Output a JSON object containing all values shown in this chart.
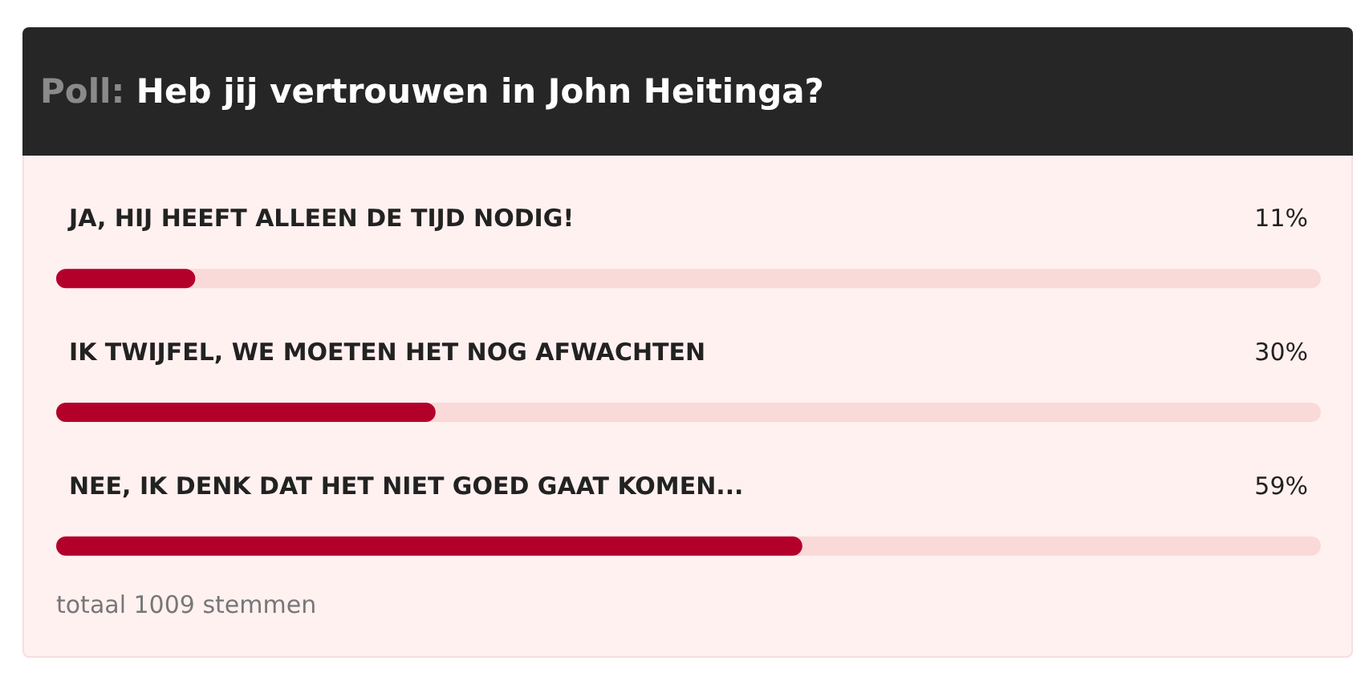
{
  "chart_data": {
    "type": "bar",
    "orientation": "horizontal",
    "title": "Poll: Heb jij vertrouwen in John Heitinga?",
    "categories": [
      "JA, HIJ HEEFT ALLEEN DE TIJD NODIG!",
      "IK TWIJFEL, WE MOETEN HET NOG AFWACHTEN",
      "NEE, IK DENK DAT HET NIET GOED GAAT KOMEN..."
    ],
    "series": [
      {
        "color": "#b3002b",
        "values": [
          11,
          30,
          59
        ],
        "value_labels": [
          "11%",
          "30%",
          "59%"
        ]
      }
    ],
    "xlim": [
      0,
      100
    ],
    "tick_labels": false,
    "annotations": [
      "totaal 1009 stemmen"
    ]
  }
}
